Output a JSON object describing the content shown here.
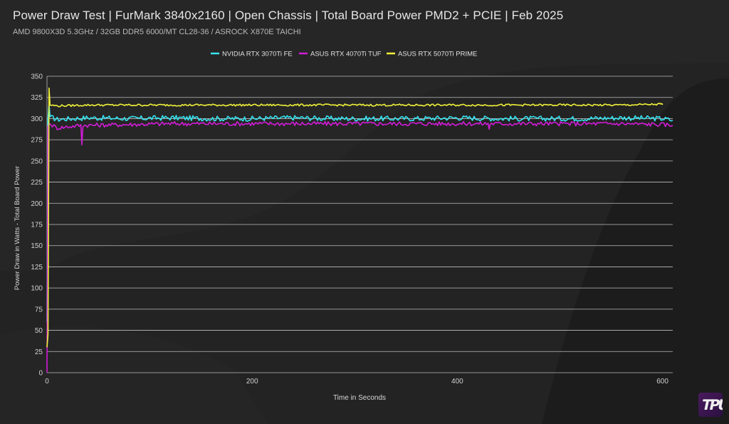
{
  "header": {
    "title": "Power Draw Test | FurMark 3840x2160 | Open Chassis | Total Board Power PMD2 + PCIE | Feb 2025",
    "subtitle": "AMD 9800X3D 5.3GHz / 32GB DDR5 6000/MT CL28-36 / ASROCK X870E TAICHI"
  },
  "chart_data": {
    "type": "line",
    "xlabel": "Time in Seconds",
    "ylabel": "Power Draw in Watts - Total Board Power",
    "xlim": [
      0,
      610
    ],
    "ylim": [
      0,
      350
    ],
    "xticks": [
      0,
      200,
      400,
      600
    ],
    "yticks": [
      0,
      25,
      50,
      75,
      100,
      125,
      150,
      175,
      200,
      225,
      250,
      275,
      300,
      325,
      350
    ],
    "grid": "horizontal",
    "legend_position": "top-center",
    "series": [
      {
        "name": "NVIDIA RTX 3070Ti FE",
        "color": "#36e3f0",
        "points": [
          [
            0,
            60
          ],
          [
            1,
            300
          ],
          [
            2,
            318
          ],
          [
            3,
            302
          ],
          [
            10,
            299
          ],
          [
            40,
            301
          ],
          [
            80,
            300
          ],
          [
            120,
            301
          ],
          [
            160,
            300
          ],
          [
            200,
            300
          ],
          [
            240,
            301
          ],
          [
            280,
            300
          ],
          [
            320,
            300
          ],
          [
            360,
            300
          ],
          [
            400,
            301
          ],
          [
            440,
            300
          ],
          [
            480,
            300
          ],
          [
            520,
            300
          ],
          [
            560,
            301
          ],
          [
            600,
            300
          ],
          [
            610,
            298
          ]
        ]
      },
      {
        "name": "ASUS RTX 4070Ti TUF",
        "color": "#d21cd8",
        "points": [
          [
            0,
            0
          ],
          [
            1,
            290
          ],
          [
            2,
            294
          ],
          [
            10,
            289
          ],
          [
            33,
            292
          ],
          [
            34,
            270
          ],
          [
            35,
            292
          ],
          [
            80,
            293
          ],
          [
            120,
            294
          ],
          [
            160,
            294
          ],
          [
            200,
            294
          ],
          [
            240,
            294
          ],
          [
            280,
            294
          ],
          [
            320,
            294
          ],
          [
            360,
            294
          ],
          [
            400,
            294
          ],
          [
            430,
            294
          ],
          [
            431,
            288
          ],
          [
            432,
            294
          ],
          [
            480,
            294
          ],
          [
            520,
            294
          ],
          [
            560,
            294
          ],
          [
            600,
            293
          ],
          [
            610,
            292
          ]
        ]
      },
      {
        "name": "ASUS RTX 5070Ti PRIME",
        "color": "#f2f23a",
        "points": [
          [
            0,
            30
          ],
          [
            1,
            45
          ],
          [
            2,
            336
          ],
          [
            3,
            316
          ],
          [
            10,
            315
          ],
          [
            40,
            316
          ],
          [
            80,
            316
          ],
          [
            120,
            316
          ],
          [
            160,
            316
          ],
          [
            200,
            316
          ],
          [
            240,
            316
          ],
          [
            280,
            316
          ],
          [
            320,
            316
          ],
          [
            360,
            316
          ],
          [
            400,
            316
          ],
          [
            440,
            316
          ],
          [
            480,
            316
          ],
          [
            520,
            316
          ],
          [
            560,
            316
          ],
          [
            600,
            317
          ],
          [
            598,
            318
          ]
        ]
      }
    ]
  }
}
